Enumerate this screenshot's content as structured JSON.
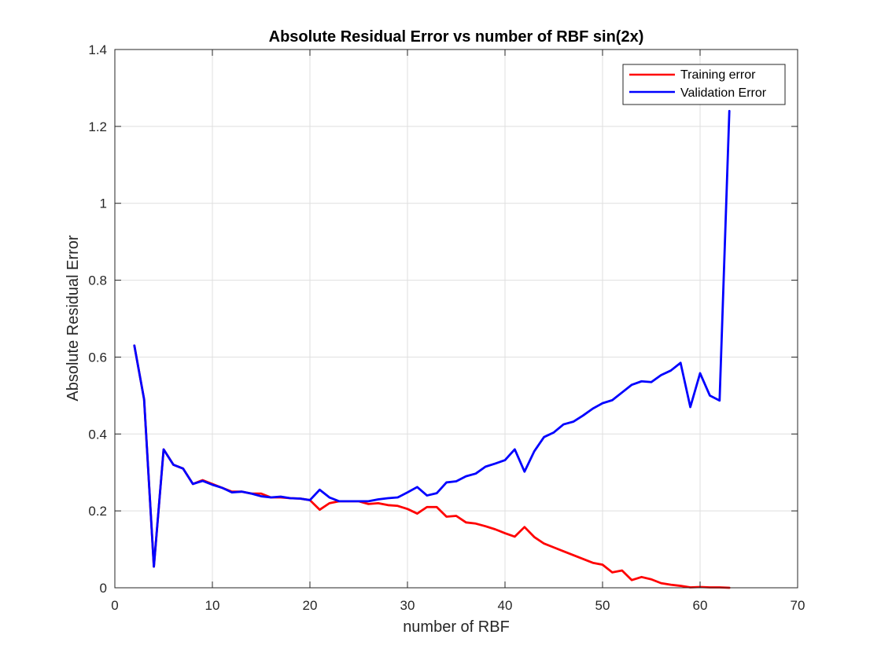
{
  "chart_data": {
    "type": "line",
    "title": "Absolute Residual Error vs number of RBF sin(2x)",
    "xlabel": "number of RBF",
    "ylabel": "Absolute Residual Error",
    "xlim": [
      0,
      70
    ],
    "ylim": [
      0,
      1.4
    ],
    "xticks": [
      0,
      10,
      20,
      30,
      40,
      50,
      60,
      70
    ],
    "xtick_labels": [
      "0",
      "10",
      "20",
      "30",
      "40",
      "50",
      "60",
      "70"
    ],
    "yticks": [
      0,
      0.2,
      0.4,
      0.6,
      0.8,
      1,
      1.2,
      1.4
    ],
    "ytick_labels": [
      "0",
      "0.2",
      "0.4",
      "0.6",
      "0.8",
      "1",
      "1.2",
      "1.4"
    ],
    "grid": true,
    "legend_position": "top-right",
    "x": [
      2,
      3,
      4,
      5,
      6,
      7,
      8,
      9,
      10,
      11,
      12,
      13,
      14,
      15,
      16,
      17,
      18,
      19,
      20,
      21,
      22,
      23,
      24,
      25,
      26,
      27,
      28,
      29,
      30,
      31,
      32,
      33,
      34,
      35,
      36,
      37,
      38,
      39,
      40,
      41,
      42,
      43,
      44,
      45,
      46,
      47,
      48,
      49,
      50,
      51,
      52,
      53,
      54,
      55,
      56,
      57,
      58,
      59,
      60,
      61,
      62,
      63
    ],
    "series": [
      {
        "name": "Training error",
        "color": "#ff0000",
        "values": [
          0.63,
          0.49,
          0.055,
          0.36,
          0.32,
          0.31,
          0.27,
          0.28,
          0.27,
          0.26,
          0.25,
          0.25,
          0.245,
          0.245,
          0.235,
          0.235,
          0.233,
          0.232,
          0.228,
          0.203,
          0.22,
          0.225,
          0.225,
          0.225,
          0.218,
          0.22,
          0.215,
          0.213,
          0.205,
          0.193,
          0.21,
          0.21,
          0.185,
          0.187,
          0.17,
          0.167,
          0.16,
          0.152,
          0.142,
          0.133,
          0.158,
          0.132,
          0.115,
          0.105,
          0.095,
          0.085,
          0.075,
          0.065,
          0.06,
          0.04,
          0.045,
          0.02,
          0.028,
          0.022,
          0.012,
          0.008,
          0.005,
          0.001,
          0.002,
          0.001,
          0.001,
          0.0
        ]
      },
      {
        "name": "Validation Error",
        "color": "#0000ff",
        "values": [
          0.63,
          0.49,
          0.055,
          0.36,
          0.32,
          0.31,
          0.27,
          0.278,
          0.268,
          0.26,
          0.248,
          0.25,
          0.245,
          0.238,
          0.235,
          0.237,
          0.233,
          0.232,
          0.228,
          0.255,
          0.235,
          0.225,
          0.225,
          0.225,
          0.225,
          0.23,
          0.233,
          0.235,
          0.248,
          0.262,
          0.24,
          0.246,
          0.274,
          0.277,
          0.29,
          0.297,
          0.315,
          0.323,
          0.332,
          0.36,
          0.302,
          0.355,
          0.392,
          0.404,
          0.425,
          0.432,
          0.448,
          0.466,
          0.48,
          0.488,
          0.508,
          0.528,
          0.537,
          0.535,
          0.553,
          0.565,
          0.585,
          0.47,
          0.558,
          0.5,
          0.487,
          1.24
        ]
      }
    ]
  }
}
